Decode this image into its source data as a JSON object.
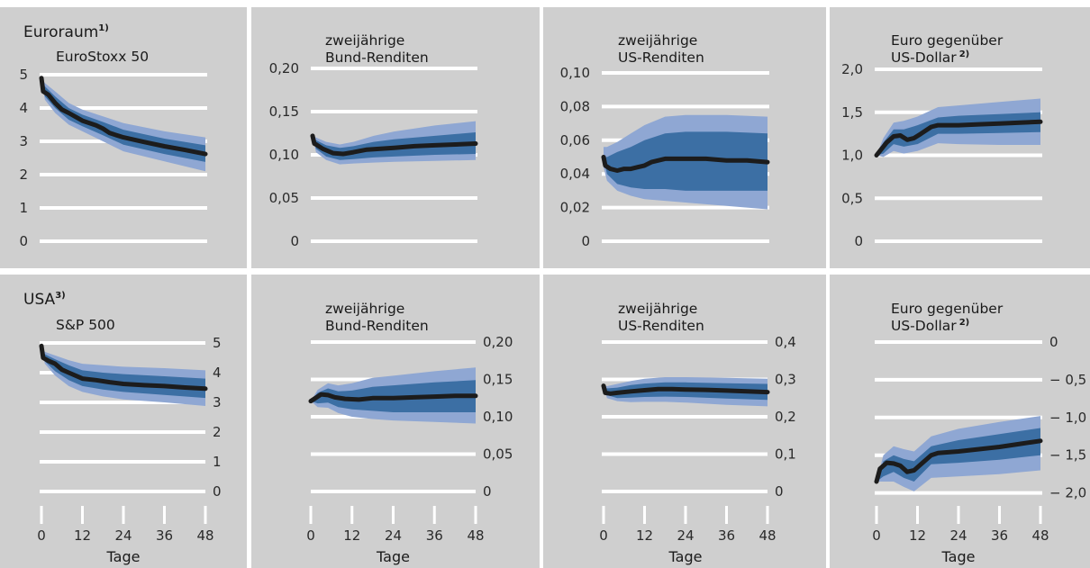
{
  "rows": [
    {
      "label": "Euroraum",
      "label_sup": "1)"
    },
    {
      "label": "USA",
      "label_sup": "3)"
    }
  ],
  "x_axis": {
    "label": "Tage",
    "ticks": [
      0,
      12,
      24,
      36,
      48
    ]
  },
  "chart_data": [
    {
      "type": "area",
      "title": "EuroStoxx 50",
      "title_sup": "",
      "ylim": [
        0,
        5
      ],
      "yticks": [
        "0",
        "1",
        "2",
        "3",
        "4",
        "5"
      ],
      "ytick_values": [
        0,
        1,
        2,
        3,
        4,
        5
      ],
      "yaxis_side": "left",
      "xlim": [
        0,
        48
      ],
      "median": [
        [
          0,
          4.9
        ],
        [
          0.5,
          4.5
        ],
        [
          2,
          4.4
        ],
        [
          4,
          4.15
        ],
        [
          6,
          3.95
        ],
        [
          8,
          3.85
        ],
        [
          12,
          3.62
        ],
        [
          16,
          3.48
        ],
        [
          18,
          3.38
        ],
        [
          20,
          3.25
        ],
        [
          24,
          3.12
        ],
        [
          30,
          2.98
        ],
        [
          36,
          2.85
        ],
        [
          42,
          2.74
        ],
        [
          48,
          2.62
        ]
      ],
      "band_inner": [
        [
          0,
          4.9,
          4.9
        ],
        [
          1,
          4.65,
          4.35
        ],
        [
          4,
          4.35,
          4.0
        ],
        [
          8,
          4.0,
          3.65
        ],
        [
          12,
          3.8,
          3.45
        ],
        [
          18,
          3.58,
          3.18
        ],
        [
          24,
          3.35,
          2.9
        ],
        [
          36,
          3.08,
          2.62
        ],
        [
          48,
          2.88,
          2.38
        ]
      ],
      "band_outer": [
        [
          0,
          4.9,
          4.9
        ],
        [
          1,
          4.75,
          4.25
        ],
        [
          4,
          4.5,
          3.85
        ],
        [
          8,
          4.15,
          3.5
        ],
        [
          12,
          3.95,
          3.3
        ],
        [
          18,
          3.75,
          3.0
        ],
        [
          24,
          3.55,
          2.7
        ],
        [
          36,
          3.3,
          2.4
        ],
        [
          48,
          3.12,
          2.1
        ]
      ]
    },
    {
      "type": "area",
      "title": "zweijährige Bund-Renditen",
      "title_sup": "",
      "ylim": [
        0,
        0.2
      ],
      "yticks": [
        "0",
        "0,05",
        "0,10",
        "0,15",
        "0,20"
      ],
      "ytick_values": [
        0,
        0.05,
        0.1,
        0.15,
        0.2
      ],
      "yaxis_side": "left",
      "xlim": [
        0,
        48
      ],
      "median": [
        [
          0,
          0.122
        ],
        [
          0.5,
          0.113
        ],
        [
          1,
          0.112
        ],
        [
          3,
          0.107
        ],
        [
          6,
          0.102
        ],
        [
          9,
          0.101
        ],
        [
          12,
          0.103
        ],
        [
          16,
          0.106
        ],
        [
          20,
          0.107
        ],
        [
          24,
          0.108
        ],
        [
          30,
          0.11
        ],
        [
          36,
          0.111
        ],
        [
          42,
          0.112
        ],
        [
          48,
          0.113
        ]
      ],
      "band_inner": [
        [
          0,
          0.122,
          0.122
        ],
        [
          1,
          0.117,
          0.107
        ],
        [
          4,
          0.111,
          0.098
        ],
        [
          8,
          0.108,
          0.094
        ],
        [
          12,
          0.11,
          0.095
        ],
        [
          18,
          0.115,
          0.097
        ],
        [
          24,
          0.118,
          0.098
        ],
        [
          36,
          0.122,
          0.1
        ],
        [
          48,
          0.126,
          0.101
        ]
      ],
      "band_outer": [
        [
          0,
          0.122,
          0.122
        ],
        [
          1,
          0.12,
          0.103
        ],
        [
          4,
          0.115,
          0.094
        ],
        [
          8,
          0.112,
          0.089
        ],
        [
          12,
          0.115,
          0.09
        ],
        [
          18,
          0.122,
          0.091
        ],
        [
          24,
          0.127,
          0.092
        ],
        [
          36,
          0.134,
          0.093
        ],
        [
          48,
          0.139,
          0.094
        ]
      ]
    },
    {
      "type": "area",
      "title": "zweijährige US-Renditen",
      "title_sup": "",
      "ylim": [
        0,
        0.1
      ],
      "yticks": [
        "0",
        "0,02",
        "0,04",
        "0,06",
        "0,08",
        "0,10"
      ],
      "ytick_values": [
        0,
        0.02,
        0.04,
        0.06,
        0.08,
        0.1
      ],
      "yaxis_side": "left",
      "xlim": [
        0,
        48
      ],
      "median": [
        [
          0,
          0.05
        ],
        [
          0.5,
          0.045
        ],
        [
          2,
          0.043
        ],
        [
          4,
          0.042
        ],
        [
          6,
          0.043
        ],
        [
          8,
          0.043
        ],
        [
          10,
          0.044
        ],
        [
          12,
          0.045
        ],
        [
          14,
          0.047
        ],
        [
          18,
          0.049
        ],
        [
          24,
          0.049
        ],
        [
          30,
          0.049
        ],
        [
          36,
          0.048
        ],
        [
          42,
          0.048
        ],
        [
          48,
          0.047
        ]
      ],
      "band_inner": [
        [
          0,
          0.05,
          0.05
        ],
        [
          1,
          0.05,
          0.04
        ],
        [
          4,
          0.053,
          0.034
        ],
        [
          8,
          0.056,
          0.032
        ],
        [
          12,
          0.06,
          0.031
        ],
        [
          18,
          0.064,
          0.031
        ],
        [
          24,
          0.065,
          0.03
        ],
        [
          36,
          0.065,
          0.03
        ],
        [
          48,
          0.064,
          0.03
        ]
      ],
      "band_outer": [
        [
          0,
          0.056,
          0.044
        ],
        [
          1,
          0.056,
          0.036
        ],
        [
          4,
          0.059,
          0.03
        ],
        [
          8,
          0.064,
          0.027
        ],
        [
          12,
          0.069,
          0.025
        ],
        [
          18,
          0.074,
          0.024
        ],
        [
          24,
          0.075,
          0.023
        ],
        [
          36,
          0.075,
          0.021
        ],
        [
          48,
          0.074,
          0.019
        ]
      ]
    },
    {
      "type": "area",
      "title": "Euro gegenüber US-Dollar",
      "title_sup": "2)",
      "ylim": [
        0,
        2
      ],
      "yticks": [
        "0",
        "0,5",
        "1,0",
        "1,5",
        "2,0"
      ],
      "ytick_values": [
        0,
        0.5,
        1.0,
        1.5,
        2.0
      ],
      "yaxis_side": "left",
      "xlim": [
        0,
        48
      ],
      "median": [
        [
          0,
          1.0
        ],
        [
          1,
          1.05
        ],
        [
          3,
          1.15
        ],
        [
          5,
          1.22
        ],
        [
          7,
          1.23
        ],
        [
          9,
          1.18
        ],
        [
          11,
          1.2
        ],
        [
          13,
          1.25
        ],
        [
          16,
          1.33
        ],
        [
          18,
          1.35
        ],
        [
          24,
          1.35
        ],
        [
          30,
          1.36
        ],
        [
          36,
          1.37
        ],
        [
          42,
          1.38
        ],
        [
          48,
          1.39
        ]
      ],
      "band_inner": [
        [
          0,
          1.0,
          1.0
        ],
        [
          2,
          1.15,
          1.02
        ],
        [
          5,
          1.3,
          1.13
        ],
        [
          8,
          1.3,
          1.1
        ],
        [
          12,
          1.35,
          1.13
        ],
        [
          18,
          1.44,
          1.25
        ],
        [
          24,
          1.46,
          1.25
        ],
        [
          36,
          1.48,
          1.26
        ],
        [
          48,
          1.5,
          1.27
        ]
      ],
      "band_outer": [
        [
          0,
          1.0,
          1.0
        ],
        [
          2,
          1.2,
          0.98
        ],
        [
          5,
          1.38,
          1.05
        ],
        [
          8,
          1.4,
          1.02
        ],
        [
          12,
          1.45,
          1.05
        ],
        [
          18,
          1.56,
          1.14
        ],
        [
          24,
          1.58,
          1.13
        ],
        [
          36,
          1.62,
          1.12
        ],
        [
          48,
          1.66,
          1.12
        ]
      ]
    },
    {
      "type": "area",
      "title": "S&P 500",
      "title_sup": "",
      "ylim": [
        0,
        5
      ],
      "yticks": [
        "0",
        "1",
        "2",
        "3",
        "4",
        "5"
      ],
      "ytick_values": [
        0,
        1,
        2,
        3,
        4,
        5
      ],
      "yaxis_side": "right",
      "xlim": [
        0,
        48
      ],
      "median": [
        [
          0,
          4.9
        ],
        [
          0.5,
          4.5
        ],
        [
          2,
          4.4
        ],
        [
          4,
          4.3
        ],
        [
          6,
          4.1
        ],
        [
          8,
          4.0
        ],
        [
          12,
          3.8
        ],
        [
          16,
          3.75
        ],
        [
          20,
          3.68
        ],
        [
          24,
          3.62
        ],
        [
          30,
          3.58
        ],
        [
          36,
          3.55
        ],
        [
          42,
          3.5
        ],
        [
          48,
          3.46
        ]
      ],
      "band_inner": [
        [
          0,
          4.9,
          4.9
        ],
        [
          1,
          4.62,
          4.38
        ],
        [
          4,
          4.45,
          4.05
        ],
        [
          8,
          4.25,
          3.75
        ],
        [
          12,
          4.08,
          3.55
        ],
        [
          18,
          4.0,
          3.43
        ],
        [
          24,
          3.95,
          3.35
        ],
        [
          36,
          3.88,
          3.25
        ],
        [
          48,
          3.8,
          3.15
        ]
      ],
      "band_outer": [
        [
          0,
          4.9,
          4.9
        ],
        [
          1,
          4.7,
          4.3
        ],
        [
          4,
          4.58,
          3.9
        ],
        [
          8,
          4.42,
          3.55
        ],
        [
          12,
          4.3,
          3.35
        ],
        [
          18,
          4.25,
          3.2
        ],
        [
          24,
          4.2,
          3.1
        ],
        [
          36,
          4.15,
          3.0
        ],
        [
          48,
          4.08,
          2.88
        ]
      ]
    },
    {
      "type": "area",
      "title": "zweijährige Bund-Renditen",
      "title_sup": "",
      "ylim": [
        0,
        0.2
      ],
      "yticks": [
        "0",
        "0,05",
        "0,10",
        "0,15",
        "0,20"
      ],
      "ytick_values": [
        0,
        0.05,
        0.1,
        0.15,
        0.2
      ],
      "yaxis_side": "right",
      "xlim": [
        0,
        48
      ],
      "median": [
        [
          0,
          0.121
        ],
        [
          1,
          0.124
        ],
        [
          3,
          0.13
        ],
        [
          5,
          0.129
        ],
        [
          7,
          0.126
        ],
        [
          10,
          0.124
        ],
        [
          14,
          0.123
        ],
        [
          18,
          0.125
        ],
        [
          24,
          0.125
        ],
        [
          30,
          0.126
        ],
        [
          36,
          0.127
        ],
        [
          42,
          0.128
        ],
        [
          48,
          0.128
        ]
      ],
      "band_inner": [
        [
          0,
          0.121,
          0.121
        ],
        [
          2,
          0.132,
          0.118
        ],
        [
          5,
          0.138,
          0.119
        ],
        [
          8,
          0.134,
          0.113
        ],
        [
          12,
          0.135,
          0.11
        ],
        [
          18,
          0.14,
          0.108
        ],
        [
          24,
          0.142,
          0.106
        ],
        [
          36,
          0.146,
          0.106
        ],
        [
          48,
          0.149,
          0.106
        ]
      ],
      "band_outer": [
        [
          0,
          0.121,
          0.121
        ],
        [
          2,
          0.136,
          0.113
        ],
        [
          5,
          0.145,
          0.112
        ],
        [
          8,
          0.142,
          0.105
        ],
        [
          12,
          0.145,
          0.1
        ],
        [
          18,
          0.152,
          0.097
        ],
        [
          24,
          0.155,
          0.095
        ],
        [
          36,
          0.161,
          0.093
        ],
        [
          48,
          0.166,
          0.091
        ]
      ]
    },
    {
      "type": "area",
      "title": "zweijährige US-Renditen",
      "title_sup": "",
      "ylim": [
        0,
        0.4
      ],
      "yticks": [
        "0",
        "0,1",
        "0,2",
        "0,3",
        "0,4"
      ],
      "ytick_values": [
        0,
        0.1,
        0.2,
        0.3,
        0.4
      ],
      "yaxis_side": "right",
      "xlim": [
        0,
        48
      ],
      "median": [
        [
          0,
          0.283
        ],
        [
          0.5,
          0.264
        ],
        [
          2,
          0.262
        ],
        [
          4,
          0.264
        ],
        [
          8,
          0.268
        ],
        [
          12,
          0.271
        ],
        [
          16,
          0.274
        ],
        [
          20,
          0.274
        ],
        [
          24,
          0.273
        ],
        [
          30,
          0.272
        ],
        [
          36,
          0.27
        ],
        [
          42,
          0.268
        ],
        [
          48,
          0.266
        ]
      ],
      "band_inner": [
        [
          0,
          0.283,
          0.283
        ],
        [
          1,
          0.276,
          0.258
        ],
        [
          4,
          0.278,
          0.25
        ],
        [
          8,
          0.285,
          0.251
        ],
        [
          12,
          0.289,
          0.253
        ],
        [
          18,
          0.292,
          0.254
        ],
        [
          24,
          0.292,
          0.253
        ],
        [
          36,
          0.29,
          0.249
        ],
        [
          48,
          0.288,
          0.245
        ]
      ],
      "band_outer": [
        [
          0,
          0.283,
          0.283
        ],
        [
          1,
          0.282,
          0.25
        ],
        [
          4,
          0.288,
          0.242
        ],
        [
          8,
          0.296,
          0.239
        ],
        [
          12,
          0.302,
          0.24
        ],
        [
          18,
          0.306,
          0.24
        ],
        [
          24,
          0.306,
          0.238
        ],
        [
          36,
          0.304,
          0.232
        ],
        [
          48,
          0.302,
          0.228
        ]
      ]
    },
    {
      "type": "area",
      "title": "Euro gegenüber US-Dollar",
      "title_sup": "2)",
      "ylim": [
        -2.1,
        0
      ],
      "yticks": [
        "0",
        "− 0,5",
        "− 1,0",
        "− 1,5",
        "− 2,0"
      ],
      "ytick_values": [
        0,
        -0.5,
        -1.0,
        -1.5,
        -2.0
      ],
      "yaxis_side": "right",
      "xlim": [
        0,
        48
      ],
      "median": [
        [
          0,
          -1.85
        ],
        [
          1,
          -1.68
        ],
        [
          3,
          -1.6
        ],
        [
          5,
          -1.61
        ],
        [
          7,
          -1.64
        ],
        [
          9,
          -1.72
        ],
        [
          11,
          -1.7
        ],
        [
          13,
          -1.62
        ],
        [
          16,
          -1.5
        ],
        [
          18,
          -1.47
        ],
        [
          24,
          -1.45
        ],
        [
          30,
          -1.42
        ],
        [
          36,
          -1.39
        ],
        [
          42,
          -1.35
        ],
        [
          48,
          -1.31
        ]
      ],
      "band_inner": [
        [
          0,
          -1.85,
          -1.85
        ],
        [
          2,
          -1.58,
          -1.78
        ],
        [
          5,
          -1.5,
          -1.72
        ],
        [
          8,
          -1.55,
          -1.8
        ],
        [
          11,
          -1.58,
          -1.85
        ],
        [
          16,
          -1.38,
          -1.62
        ],
        [
          24,
          -1.3,
          -1.6
        ],
        [
          36,
          -1.22,
          -1.56
        ],
        [
          48,
          -1.14,
          -1.5
        ]
      ],
      "band_outer": [
        [
          0,
          -1.85,
          -1.85
        ],
        [
          2,
          -1.5,
          -1.85
        ],
        [
          5,
          -1.38,
          -1.85
        ],
        [
          8,
          -1.42,
          -1.92
        ],
        [
          11,
          -1.45,
          -1.98
        ],
        [
          16,
          -1.25,
          -1.8
        ],
        [
          24,
          -1.15,
          -1.78
        ],
        [
          36,
          -1.06,
          -1.75
        ],
        [
          48,
          -0.98,
          -1.7
        ]
      ]
    }
  ],
  "colors": {
    "panel_bg": "#cfcfcf",
    "gridline": "#ffffff",
    "band_outer": "#8fa7d3",
    "band_inner": "#3c6fa4",
    "median_line": "#1c1c1c"
  }
}
